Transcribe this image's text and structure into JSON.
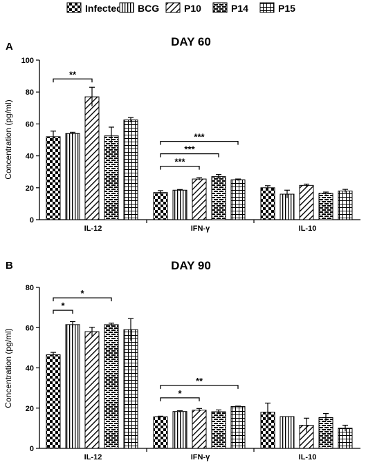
{
  "legend": {
    "entries": [
      {
        "label": "Infected",
        "pattern": "checker"
      },
      {
        "label": "BCG",
        "pattern": "vlines"
      },
      {
        "label": "P10",
        "pattern": "diag"
      },
      {
        "label": "P14",
        "pattern": "brick"
      },
      {
        "label": "P15",
        "pattern": "grid"
      }
    ]
  },
  "chart_data": [
    {
      "type": "bar",
      "panel_label": "A",
      "title": "DAY 60",
      "ylabel": "Concentration (pg/ml)",
      "xlabel": "",
      "ylim": [
        0,
        100
      ],
      "yticks": [
        0,
        20,
        40,
        60,
        80,
        100
      ],
      "categories": [
        "IL-12",
        "IFN-γ",
        "IL-10"
      ],
      "series": [
        {
          "name": "Infected",
          "values": [
            52,
            17,
            20
          ],
          "errors": [
            3.5,
            1.2,
            1.3
          ]
        },
        {
          "name": "BCG",
          "values": [
            54,
            18.5,
            16
          ],
          "errors": [
            0.8,
            0.4,
            2.5
          ]
        },
        {
          "name": "P10",
          "values": [
            77,
            25.5,
            21.5
          ],
          "errors": [
            6,
            0.8,
            0.8
          ]
        },
        {
          "name": "P14",
          "values": [
            52.5,
            27,
            16.5
          ],
          "errors": [
            5.5,
            1.3,
            0.8
          ]
        },
        {
          "name": "P15",
          "values": [
            62.5,
            25,
            18
          ],
          "errors": [
            1.5,
            0.5,
            1
          ]
        }
      ],
      "significance": [
        {
          "category": "IL-12",
          "from": "Infected",
          "to": "P10",
          "label": "**"
        },
        {
          "category": "IFN-γ",
          "from": "Infected",
          "to": "P10",
          "label": "***"
        },
        {
          "category": "IFN-γ",
          "from": "Infected",
          "to": "P14",
          "label": "***"
        },
        {
          "category": "IFN-γ",
          "from": "Infected",
          "to": "P15",
          "label": "***"
        }
      ]
    },
    {
      "type": "bar",
      "panel_label": "B",
      "title": "DAY 90",
      "ylabel": "Concentration (pg/ml)",
      "xlabel": "",
      "ylim": [
        0,
        80
      ],
      "yticks": [
        0,
        20,
        40,
        60,
        80
      ],
      "categories": [
        "IL-12",
        "IFN-γ",
        "IL-10"
      ],
      "series": [
        {
          "name": "Infected",
          "values": [
            46.5,
            15.7,
            18
          ],
          "errors": [
            1.2,
            0.3,
            4.5
          ]
        },
        {
          "name": "BCG",
          "values": [
            61.5,
            18.3,
            15.8
          ],
          "errors": [
            1.5,
            0.4,
            0
          ]
        },
        {
          "name": "P10",
          "values": [
            58,
            19,
            11.5
          ],
          "errors": [
            2.2,
            0.8,
            3.5
          ]
        },
        {
          "name": "P14",
          "values": [
            61.5,
            18.2,
            15.3
          ],
          "errors": [
            0.7,
            0.9,
            2
          ]
        },
        {
          "name": "P15",
          "values": [
            59,
            20.8,
            10
          ],
          "errors": [
            5.5,
            0.2,
            1.5
          ]
        }
      ],
      "significance": [
        {
          "category": "IL-12",
          "from": "Infected",
          "to": "BCG",
          "label": "*"
        },
        {
          "category": "IL-12",
          "from": "Infected",
          "to": "P14",
          "label": "*"
        },
        {
          "category": "IFN-γ",
          "from": "Infected",
          "to": "P10",
          "label": "*"
        },
        {
          "category": "IFN-γ",
          "from": "Infected",
          "to": "P15",
          "label": "**"
        }
      ]
    }
  ]
}
